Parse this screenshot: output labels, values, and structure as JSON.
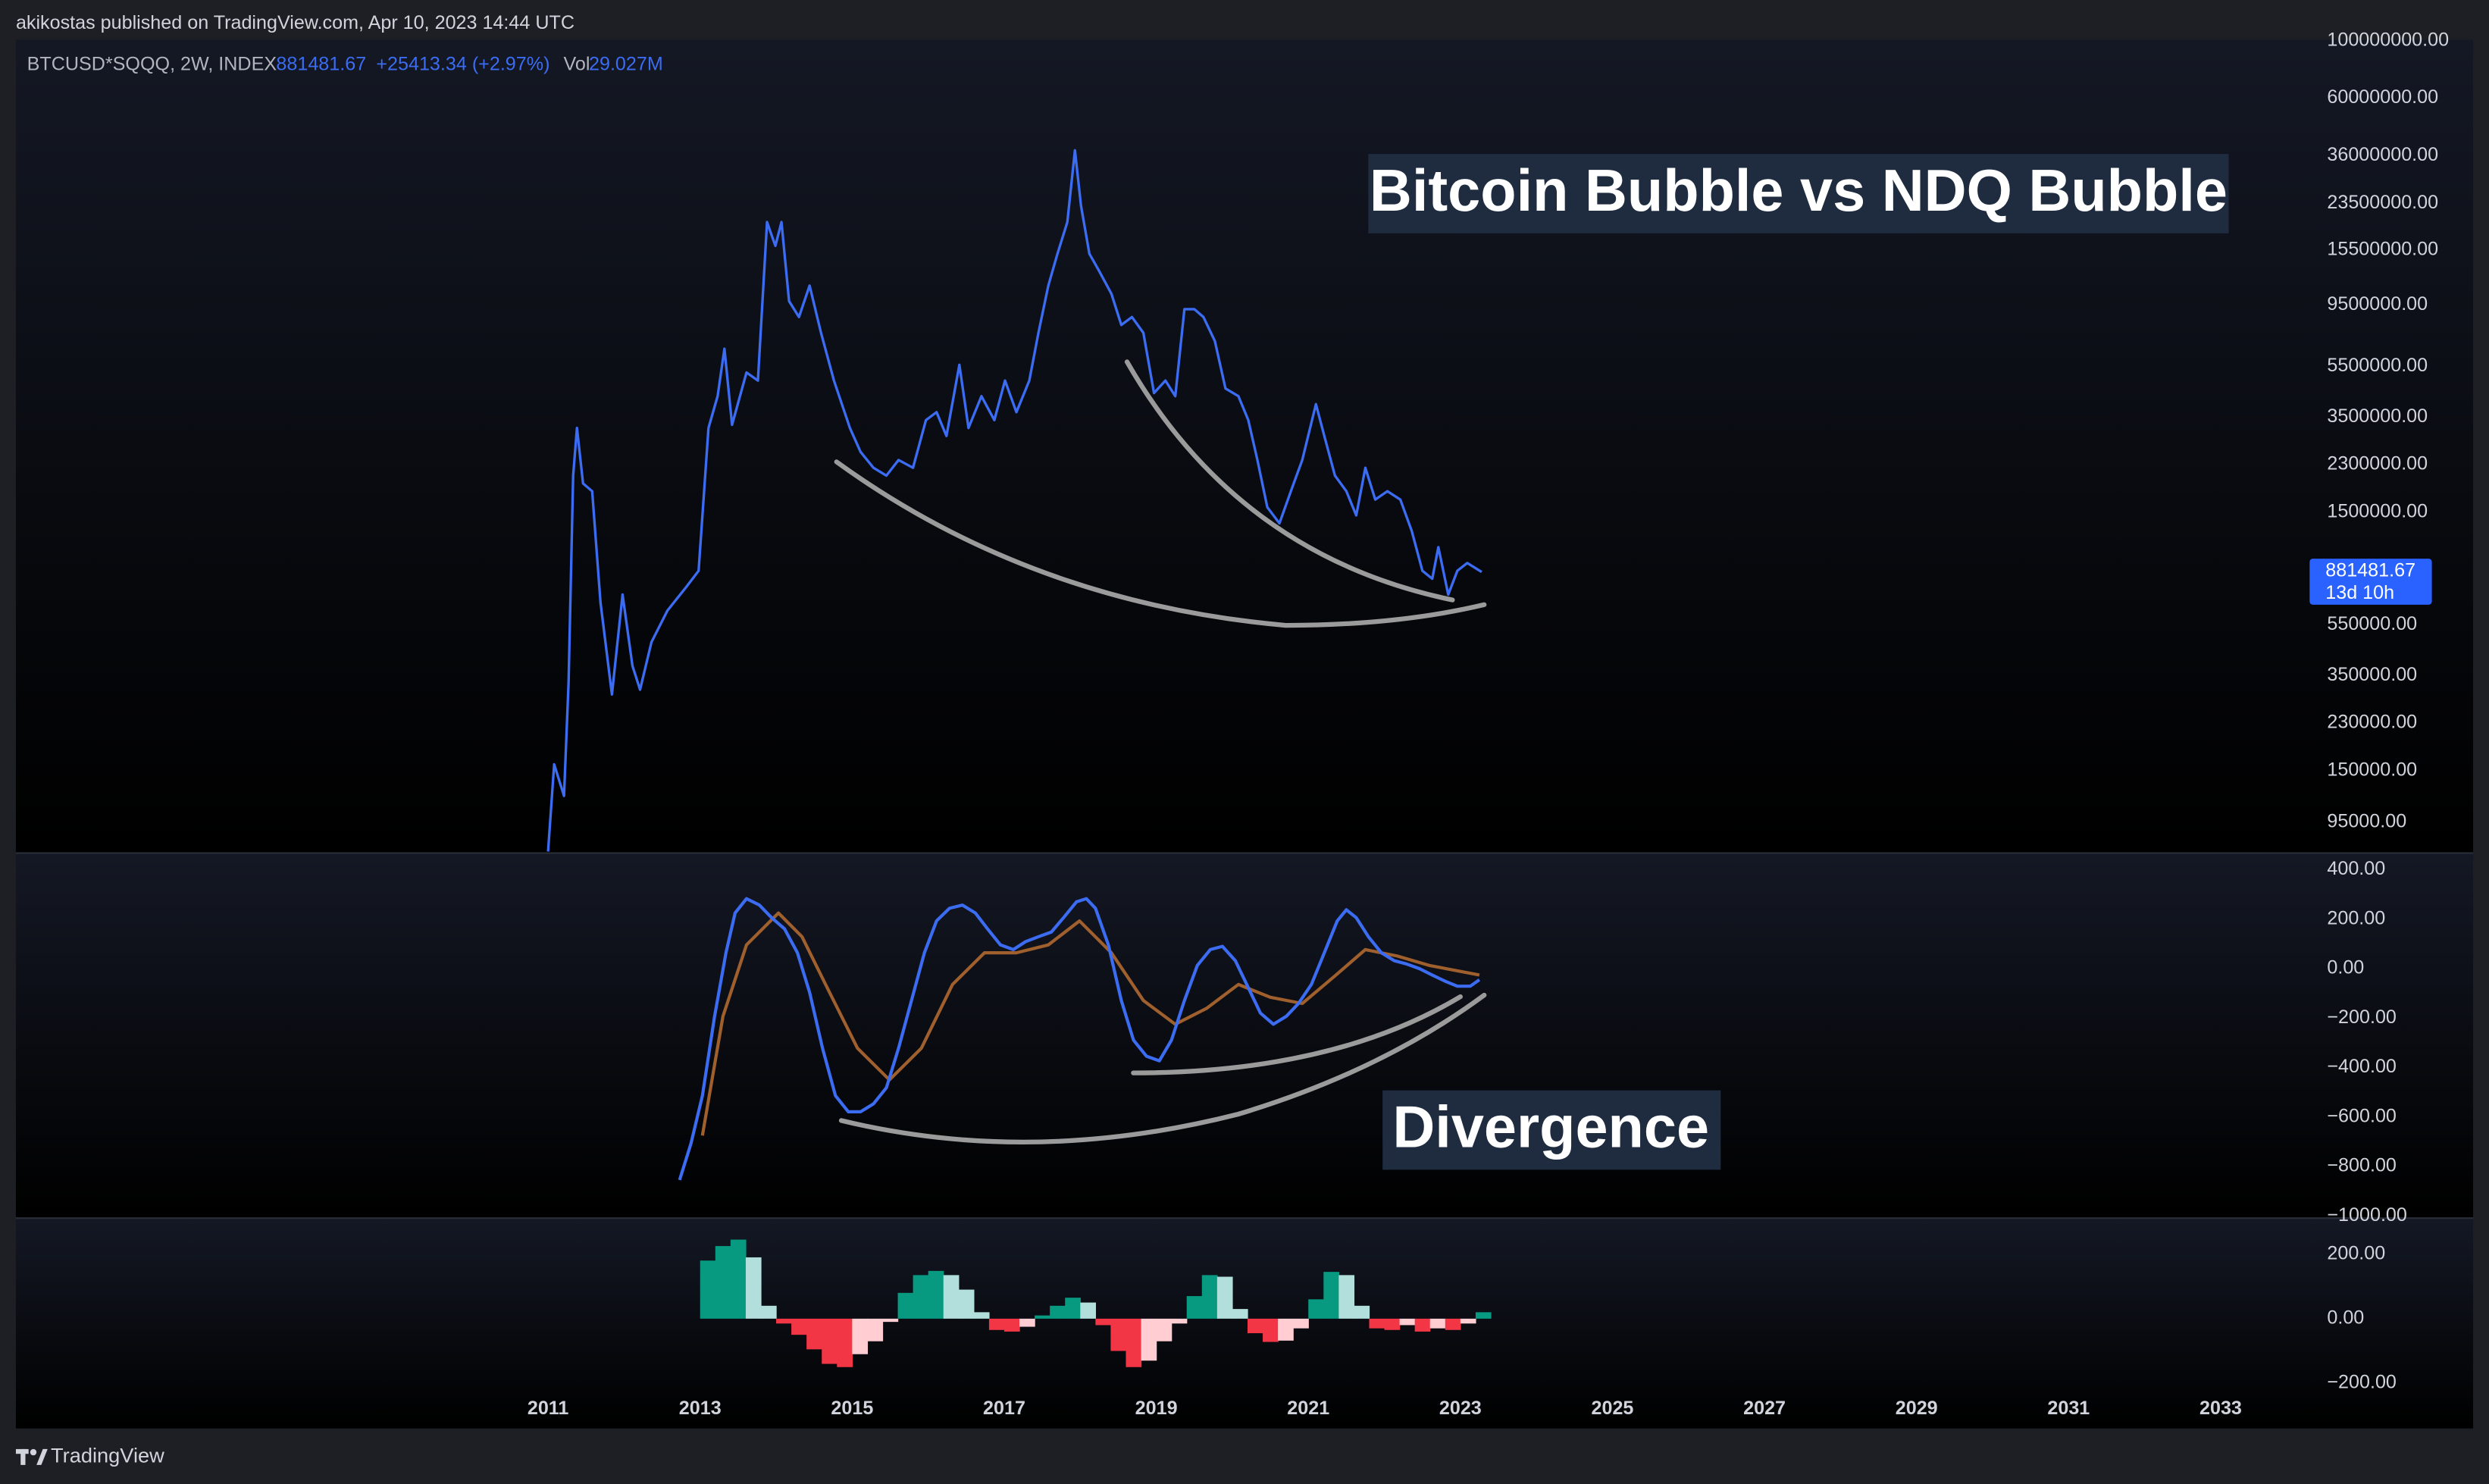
{
  "header": {
    "text": "akikostas published on TradingView.com, Apr 10, 2023 14:44 UTC"
  },
  "footer": {
    "brand": "TradingView"
  },
  "chart_data": [
    {
      "type": "line",
      "log_scale": true,
      "grid": false,
      "symbol": "BTCUSD*SQQQ, 2W, INDEX",
      "legend_values": [
        "881481.67",
        "+25413.34 (+2.97%)"
      ],
      "volume_label": "Vol",
      "volume": "29.027M",
      "countdown": "13d 10h",
      "annotation": "Bitcoin Bubble vs NDQ Bubble",
      "xlim": [
        2004.0,
        2034.17
      ],
      "ylim": [
        72600,
        101000000
      ],
      "yticks": [
        {
          "value": 100000000,
          "label": "100000000.00"
        },
        {
          "value": 60000000,
          "label": "60000000.00"
        },
        {
          "value": 36000000,
          "label": "36000000.00"
        },
        {
          "value": 23500000,
          "label": "23500000.00"
        },
        {
          "value": 15500000,
          "label": "15500000.00"
        },
        {
          "value": 9500000,
          "label": "9500000.00"
        },
        {
          "value": 5500000,
          "label": "5500000.00"
        },
        {
          "value": 3500000,
          "label": "3500000.00"
        },
        {
          "value": 2300000,
          "label": "2300000.00"
        },
        {
          "value": 1500000,
          "label": "1500000.00"
        },
        {
          "value": 550000,
          "label": "550000.00"
        },
        {
          "value": 350000,
          "label": "350000.00"
        },
        {
          "value": 230000,
          "label": "230000.00"
        },
        {
          "value": 150000,
          "label": "150000.00"
        },
        {
          "value": 95000,
          "label": "95000.00"
        }
      ],
      "x": [
        2011.0,
        2011.08,
        2011.21,
        2011.27,
        2011.33,
        2011.38,
        2011.46,
        2011.58,
        2011.69,
        2011.84,
        2011.98,
        2012.11,
        2012.21,
        2012.36,
        2012.57,
        2012.82,
        2012.98,
        2013.11,
        2013.23,
        2013.32,
        2013.42,
        2013.61,
        2013.76,
        2013.88,
        2013.99,
        2014.07,
        2014.17,
        2014.3,
        2014.44,
        2014.59,
        2014.76,
        2014.97,
        2015.11,
        2015.28,
        2015.45,
        2015.61,
        2015.8,
        2015.97,
        2016.11,
        2016.24,
        2016.41,
        2016.53,
        2016.7,
        2016.87,
        2017.01,
        2017.16,
        2017.33,
        2017.45,
        2017.58,
        2017.7,
        2017.83,
        2017.93,
        2018.01,
        2018.12,
        2018.24,
        2018.41,
        2018.54,
        2018.68,
        2018.83,
        2018.97,
        2019.12,
        2019.25,
        2019.37,
        2019.5,
        2019.62,
        2019.77,
        2019.91,
        2020.08,
        2020.21,
        2020.33,
        2020.46,
        2020.62,
        2020.77,
        2020.92,
        2021.1,
        2021.21,
        2021.35,
        2021.5,
        2021.63,
        2021.75,
        2021.88,
        2022.04,
        2022.21,
        2022.36,
        2022.5,
        2022.63,
        2022.71,
        2022.84,
        2022.96,
        2023.09,
        2023.28
      ],
      "series": [
        {
          "color": "#3b6cf2",
          "values": [
            73100,
            159000,
            120000,
            331000,
            2080000,
            3180000,
            1940000,
            1810000,
            671000,
            296000,
            721000,
            382000,
            309000,
            472000,
            625000,
            773000,
            891000,
            3180000,
            4220000,
            6440000,
            3270000,
            5210000,
            4850000,
            19900000,
            16100000,
            19900000,
            9840000,
            8540000,
            11300000,
            7420000,
            4850000,
            3180000,
            2570000,
            2230000,
            2080000,
            2390000,
            2230000,
            3410000,
            3660000,
            2960000,
            5580000,
            3180000,
            4220000,
            3410000,
            4850000,
            3660000,
            4850000,
            7420000,
            11300000,
            15000000,
            19900000,
            37700000,
            23000000,
            15000000,
            13000000,
            10500000,
            7960000,
            8540000,
            7420000,
            4340000,
            4850000,
            4220000,
            9160000,
            9160000,
            8540000,
            6900000,
            4520000,
            4220000,
            3410000,
            2390000,
            1570000,
            1360000,
            1810000,
            2390000,
            3930000,
            2960000,
            2080000,
            1810000,
            1460000,
            2230000,
            1680000,
            1810000,
            1680000,
            1270000,
            891000,
            830000,
            1100000,
            721000,
            891000,
            955000,
            881481.67
          ]
        }
      ]
    },
    {
      "type": "line",
      "log_scale": false,
      "grid": false,
      "annotation": "Divergence",
      "xlim": [
        2004.0,
        2034.17
      ],
      "ylim": [
        -1006,
        464
      ],
      "yticks": [
        {
          "value": 400,
          "label": "400.00"
        },
        {
          "value": 200,
          "label": "200.00"
        },
        {
          "value": 0,
          "label": "0.00"
        },
        {
          "value": -200,
          "label": "−200.00"
        },
        {
          "value": -400,
          "label": "−400.00"
        },
        {
          "value": -600,
          "label": "−600.00"
        },
        {
          "value": -800,
          "label": "−800.00"
        },
        {
          "value": -1000,
          "label": "−1000.00"
        }
      ],
      "series": [
        {
          "color": "#a0602e",
          "x": [
            2013.03,
            2013.3,
            2013.61,
            2014.03,
            2014.34,
            2014.65,
            2015.07,
            2015.49,
            2015.91,
            2016.32,
            2016.74,
            2017.16,
            2017.58,
            2017.99,
            2018.41,
            2018.83,
            2019.25,
            2019.66,
            2020.08,
            2020.5,
            2020.92,
            2021.34,
            2021.75,
            2022.17,
            2022.59,
            2023.25
          ],
          "values": [
            -675,
            -193,
            96,
            225,
            129,
            -64,
            -322,
            -450,
            -322,
            -64,
            64,
            64,
            96,
            193,
            64,
            -129,
            -225,
            -161,
            -64,
            -116,
            -141,
            -32,
            77,
            51,
            13,
            -26
          ]
        },
        {
          "color": "#3b6cf2",
          "x": [
            2012.73,
            2012.88,
            2013.03,
            2013.19,
            2013.34,
            2013.46,
            2013.61,
            2013.78,
            2013.94,
            2014.11,
            2014.28,
            2014.44,
            2014.61,
            2014.78,
            2014.95,
            2015.11,
            2015.28,
            2015.45,
            2015.61,
            2015.78,
            2015.95,
            2016.11,
            2016.28,
            2016.45,
            2016.62,
            2016.78,
            2016.95,
            2017.12,
            2017.28,
            2017.45,
            2017.62,
            2017.78,
            2017.95,
            2018.08,
            2018.2,
            2018.37,
            2018.54,
            2018.7,
            2018.87,
            2019.04,
            2019.2,
            2019.37,
            2019.54,
            2019.71,
            2019.87,
            2020.04,
            2020.21,
            2020.37,
            2020.54,
            2020.71,
            2020.87,
            2021.04,
            2021.21,
            2021.38,
            2021.5,
            2021.63,
            2021.79,
            2021.96,
            2022.13,
            2022.29,
            2022.46,
            2022.63,
            2022.8,
            2022.96,
            2023.13,
            2023.25
          ],
          "values": [
            -855,
            -707,
            -514,
            -193,
            64,
            225,
            283,
            257,
            206,
            161,
            64,
            -96,
            -322,
            -514,
            -579,
            -579,
            -547,
            -482,
            -322,
            -129,
            64,
            193,
            244,
            257,
            225,
            161,
            96,
            77,
            109,
            129,
            148,
            206,
            270,
            283,
            244,
            96,
            -129,
            -289,
            -354,
            -373,
            -289,
            -129,
            13,
            77,
            90,
            32,
            -77,
            -180,
            -225,
            -193,
            -141,
            -64,
            64,
            193,
            238,
            206,
            129,
            64,
            32,
            19,
            0,
            -26,
            -51,
            -71,
            -71,
            -45
          ]
        }
      ]
    },
    {
      "type": "histogram",
      "log_scale": false,
      "grid": false,
      "colors": {
        "grow_above": "#089981",
        "fall_above": "#b2dfdb",
        "grow_below": "#ffcdd2",
        "fall_below": "#f23645"
      },
      "xlim": [
        2004.0,
        2034.17
      ],
      "xticks": [
        2011,
        2013,
        2015,
        2017,
        2019,
        2021,
        2023,
        2025,
        2027,
        2029,
        2031,
        2033
      ],
      "ylim": [
        -227,
        309
      ],
      "yticks": [
        {
          "value": 200,
          "label": "200.00"
        },
        {
          "value": 0,
          "label": "0.00"
        },
        {
          "value": -200,
          "label": "−200.00"
        }
      ],
      "x": [
        2013.0,
        2013.2,
        2013.4,
        2013.6,
        2013.8,
        2014.0,
        2014.2,
        2014.4,
        2014.6,
        2014.8,
        2015.0,
        2015.2,
        2015.4,
        2015.6,
        2015.8,
        2016.0,
        2016.2,
        2016.4,
        2016.6,
        2016.8,
        2017.0,
        2017.2,
        2017.4,
        2017.6,
        2017.8,
        2018.0,
        2018.2,
        2018.4,
        2018.6,
        2018.8,
        2019.0,
        2019.2,
        2019.4,
        2019.6,
        2019.8,
        2020.0,
        2020.2,
        2020.4,
        2020.6,
        2020.8,
        2021.0,
        2021.2,
        2021.4,
        2021.6,
        2021.8,
        2022.0,
        2022.2,
        2022.4,
        2022.6,
        2022.8,
        2023.0,
        2023.2
      ],
      "values": [
        180,
        225,
        245,
        190,
        40,
        -15,
        -50,
        -95,
        -140,
        -150,
        -110,
        -70,
        -10,
        80,
        135,
        148,
        135,
        90,
        20,
        -35,
        -40,
        -25,
        10,
        40,
        65,
        50,
        -20,
        -100,
        -150,
        -130,
        -70,
        -15,
        70,
        135,
        130,
        30,
        -45,
        -72,
        -68,
        -30,
        60,
        145,
        135,
        40,
        -30,
        -35,
        -20,
        -40,
        -30,
        -35,
        -15,
        20
      ]
    }
  ]
}
